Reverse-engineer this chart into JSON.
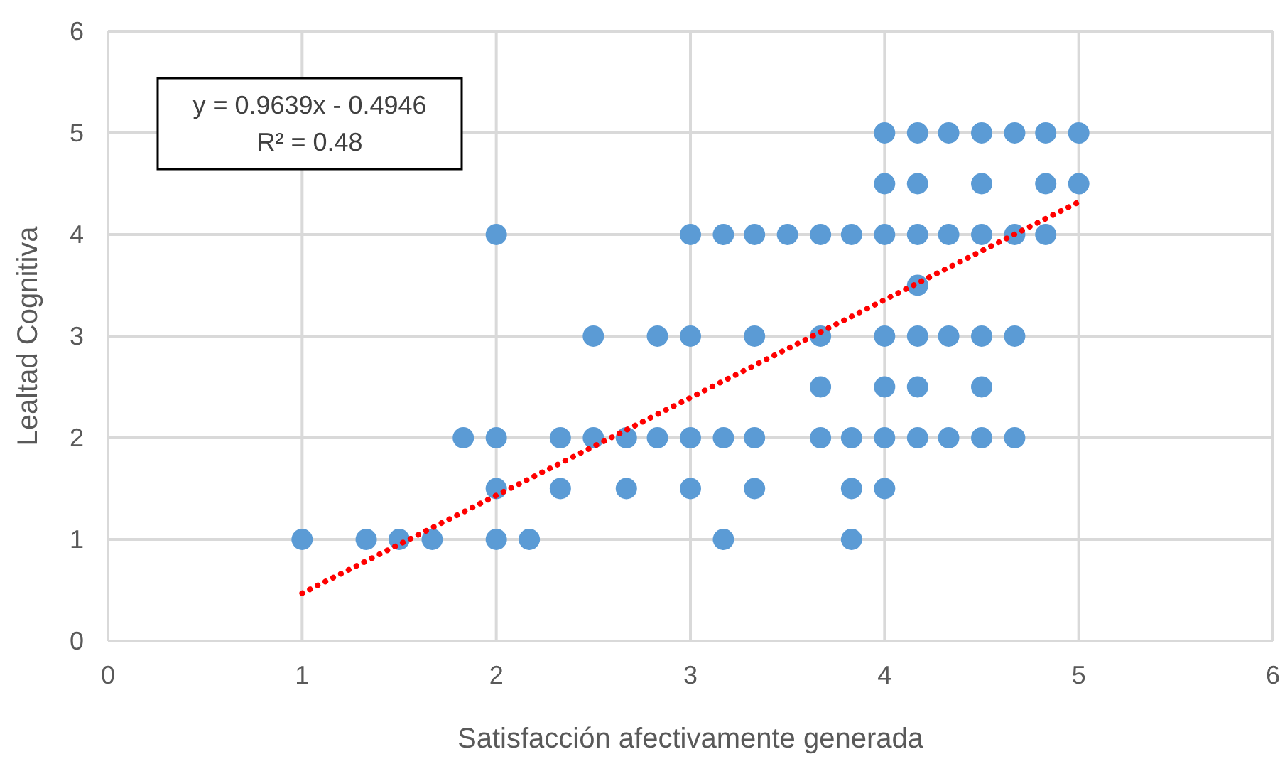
{
  "chart_data": {
    "type": "scatter",
    "xlabel": "Satisfacción afectivamente generada",
    "ylabel": "Lealtad Cognitiva",
    "annotations": [
      "y = 0.9639x - 0.4946",
      "R² = 0.48"
    ],
    "xlim": [
      0,
      6
    ],
    "ylim": [
      0,
      6
    ],
    "xticks": [
      0,
      1,
      2,
      3,
      4,
      5,
      6
    ],
    "yticks": [
      0,
      1,
      2,
      3,
      4,
      5,
      6
    ],
    "grid": true,
    "series": [
      {
        "color": "#5b9bd5",
        "marker": "circle",
        "x": [
          1,
          1.33,
          1.5,
          1.67,
          2,
          2.17,
          3.17,
          3.83,
          2,
          2.33,
          2.67,
          3,
          3.33,
          3.83,
          4,
          1.83,
          2,
          2.33,
          2.5,
          2.67,
          2.83,
          3,
          3.17,
          3.33,
          3.67,
          3.83,
          4,
          4.17,
          4.33,
          4.5,
          4.67,
          3.67,
          4,
          4.17,
          4.5,
          2.5,
          2.83,
          3,
          3.33,
          3.67,
          4,
          4.17,
          4.33,
          4.5,
          4.67,
          4.17,
          2,
          3,
          3.17,
          3.33,
          3.5,
          3.67,
          3.83,
          4,
          4.17,
          4.33,
          4.5,
          4.67,
          4.83,
          4,
          4.17,
          4.5,
          4.83,
          5,
          4,
          4.17,
          4.33,
          4.5,
          4.67,
          4.83,
          5
        ],
        "values": [
          1,
          1,
          1,
          1,
          1,
          1,
          1,
          1,
          1.5,
          1.5,
          1.5,
          1.5,
          1.5,
          1.5,
          1.5,
          2,
          2,
          2,
          2,
          2,
          2,
          2,
          2,
          2,
          2,
          2,
          2,
          2,
          2,
          2,
          2,
          2.5,
          2.5,
          2.5,
          2.5,
          3,
          3,
          3,
          3,
          3,
          3,
          3,
          3,
          3,
          3,
          3.5,
          4,
          4,
          4,
          4,
          4,
          4,
          4,
          4,
          4,
          4,
          4,
          4,
          4,
          4.5,
          4.5,
          4.5,
          4.5,
          4.5,
          5,
          5,
          5,
          5,
          5,
          5,
          5
        ]
      },
      {
        "type": "line",
        "color": "#ff0000",
        "line_style": "dotted",
        "marker": "none",
        "x": [
          1,
          5
        ],
        "values": [
          0.47,
          4.32
        ]
      }
    ]
  }
}
